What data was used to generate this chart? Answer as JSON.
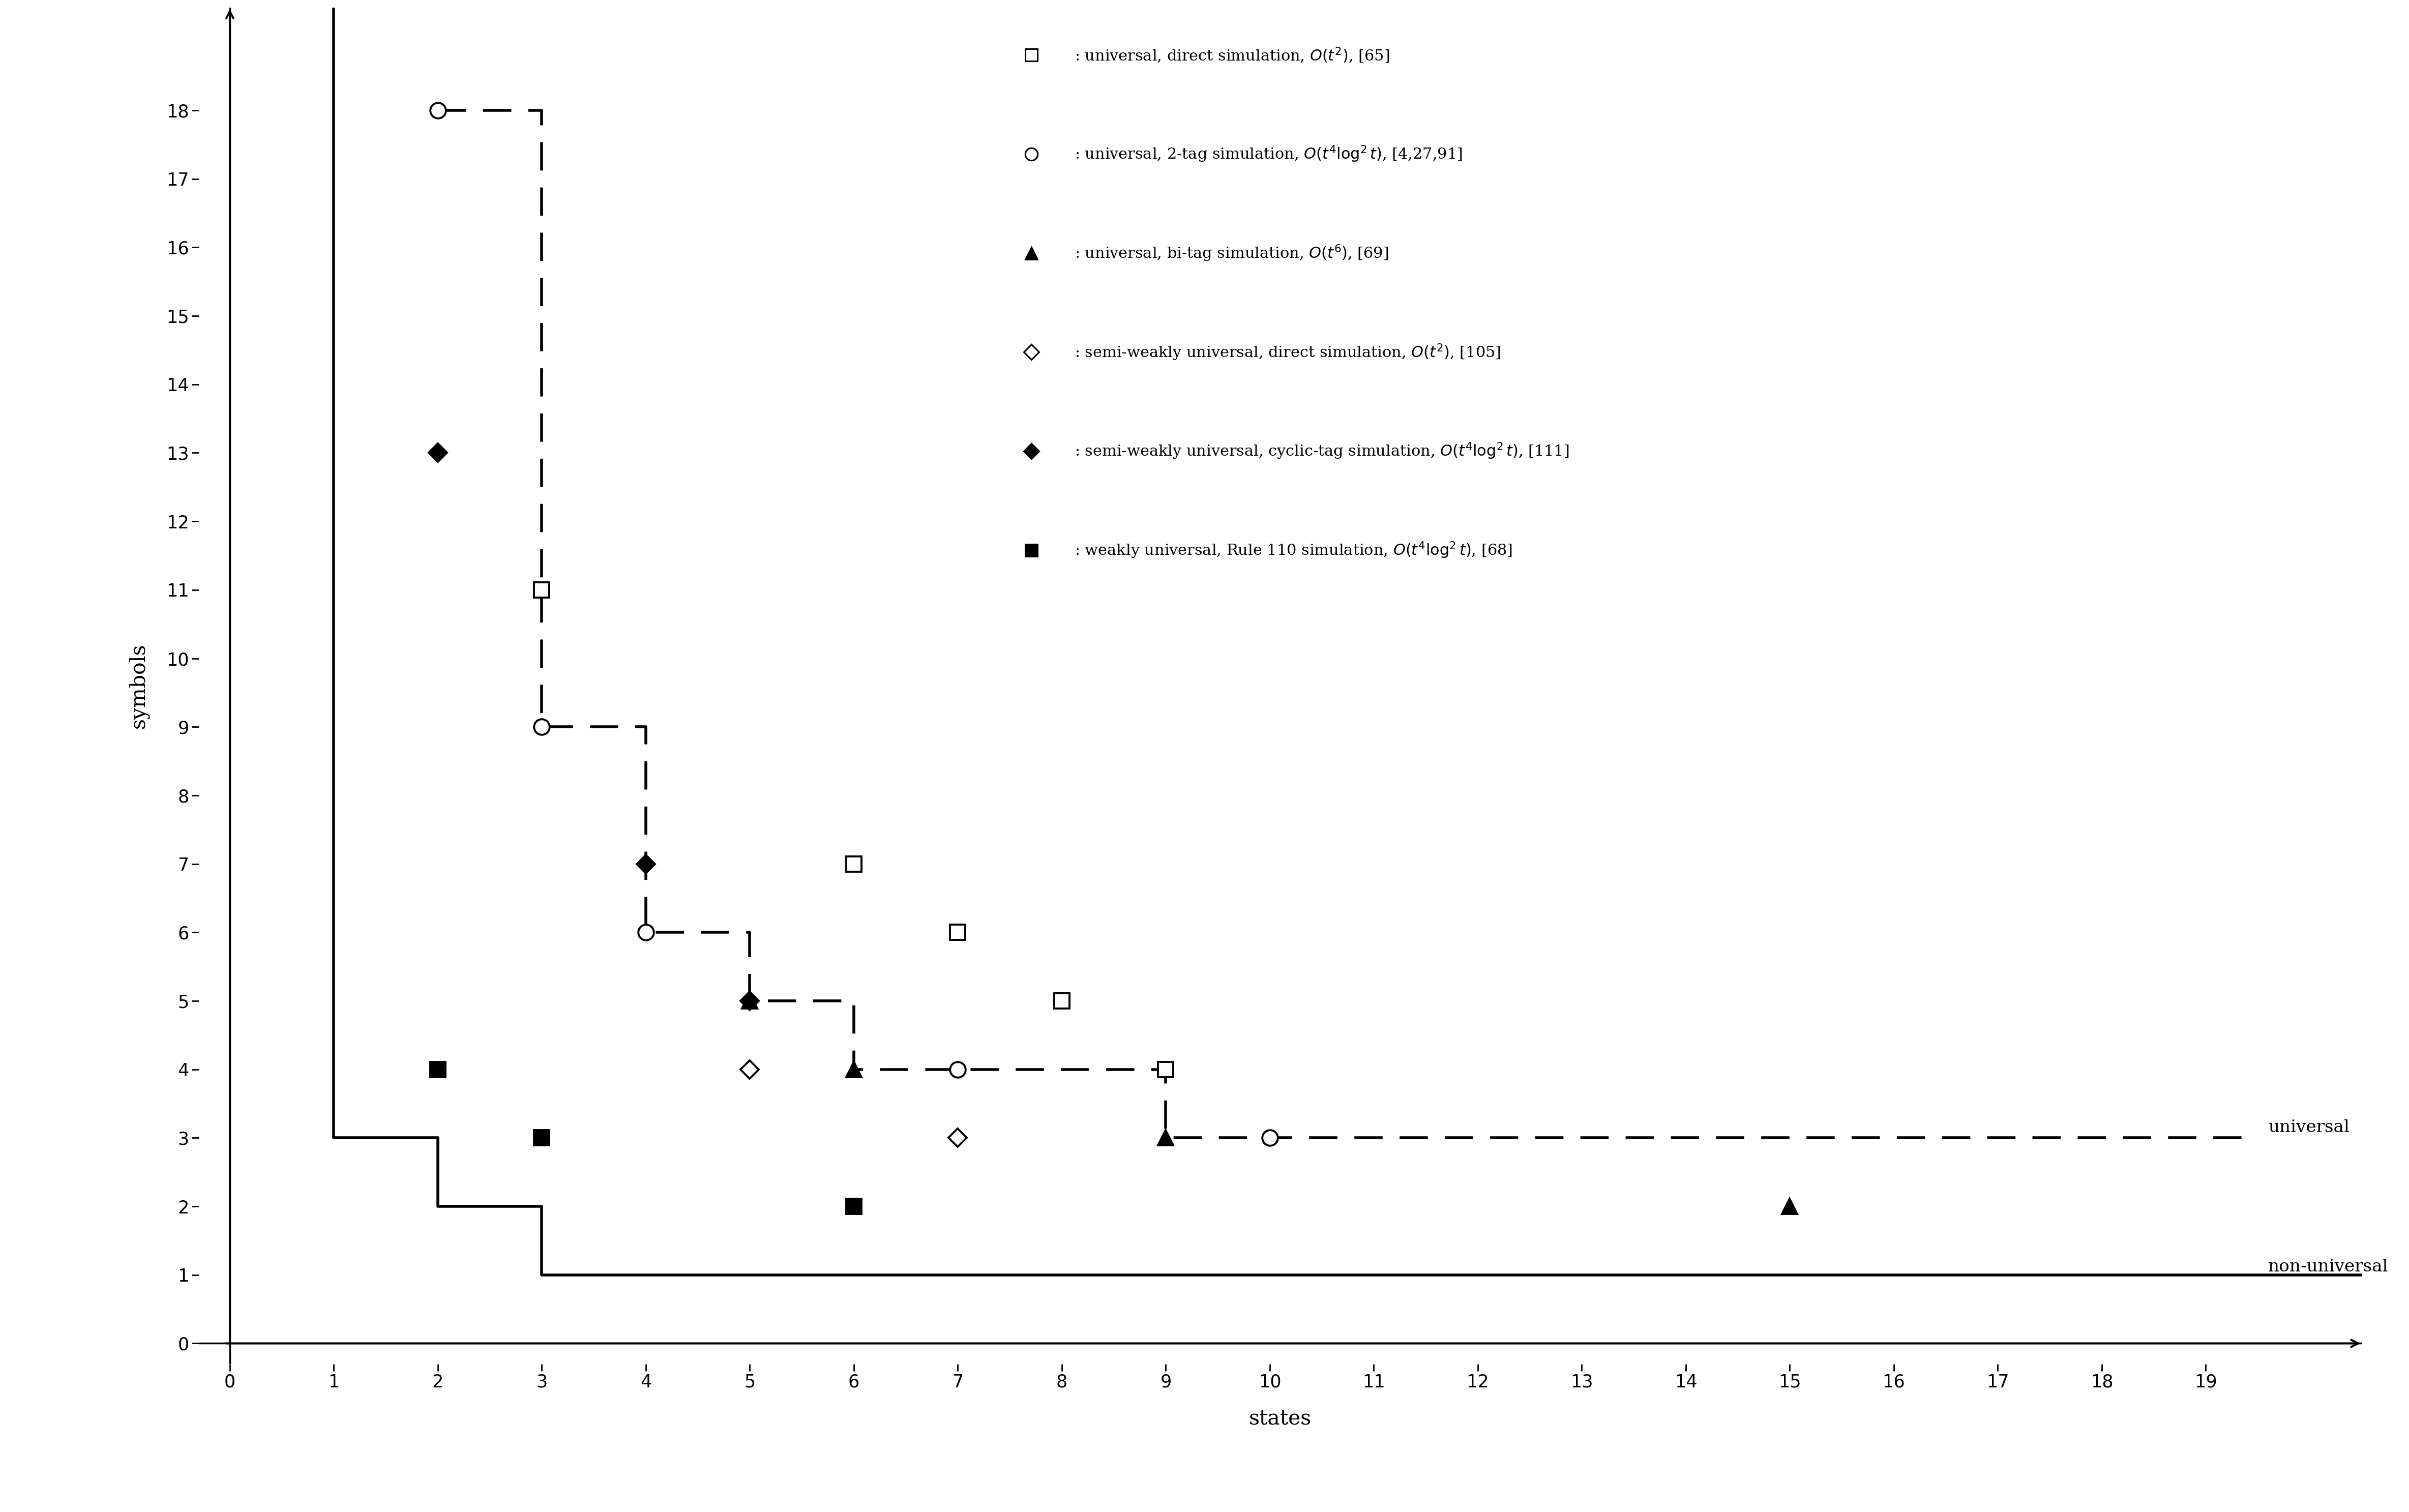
{
  "xlabel": "states",
  "ylabel": "symbols",
  "xlim": [
    -0.3,
    20.5
  ],
  "ylim": [
    -0.3,
    19.5
  ],
  "xticks": [
    0,
    1,
    2,
    3,
    4,
    5,
    6,
    7,
    8,
    9,
    10,
    11,
    12,
    13,
    14,
    15,
    16,
    17,
    18,
    19
  ],
  "yticks": [
    0,
    1,
    2,
    3,
    4,
    5,
    6,
    7,
    8,
    9,
    10,
    11,
    12,
    13,
    14,
    15,
    16,
    17,
    18
  ],
  "square_open_points": [
    [
      3,
      11
    ],
    [
      6,
      7
    ],
    [
      7,
      6
    ],
    [
      8,
      5
    ],
    [
      9,
      4
    ]
  ],
  "circle_open_points": [
    [
      2,
      18
    ],
    [
      3,
      9
    ],
    [
      4,
      6
    ],
    [
      7,
      4
    ],
    [
      10,
      3
    ]
  ],
  "triangle_filled_points": [
    [
      5,
      5
    ],
    [
      6,
      4
    ],
    [
      9,
      3
    ],
    [
      15,
      2
    ]
  ],
  "diamond_open_points": [
    [
      5,
      4
    ],
    [
      7,
      3
    ]
  ],
  "diamond_filled_points": [
    [
      2,
      13
    ],
    [
      4,
      7
    ],
    [
      5,
      5
    ]
  ],
  "square_filled_points": [
    [
      2,
      4
    ],
    [
      3,
      3
    ],
    [
      6,
      2
    ]
  ],
  "nonuniv_x": [
    1,
    1,
    2,
    2,
    3,
    3,
    4,
    20.5
  ],
  "nonuniv_y": [
    19.5,
    3,
    3,
    2,
    2,
    1,
    1,
    1
  ],
  "univ_step_x": [
    2,
    3,
    3,
    4,
    4,
    5,
    5,
    6,
    6,
    9,
    9,
    19.5
  ],
  "univ_step_y": [
    18,
    18,
    9,
    9,
    6,
    6,
    5,
    5,
    4,
    4,
    3,
    3
  ],
  "universal_label": "universal",
  "nonuniversal_label": "non-universal",
  "background_color": "#ffffff",
  "marker_color": "#000000",
  "marker_size": 22,
  "linewidth": 2.5,
  "fontsize": 28
}
